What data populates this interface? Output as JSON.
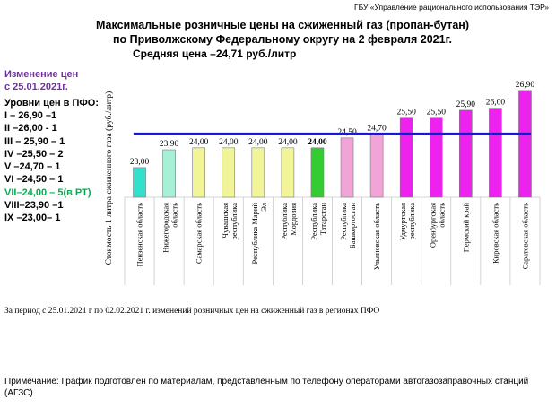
{
  "org_label": "ГБУ «Управление рационального использования ТЭР»",
  "title_line1": "Максимальные розничные цены на сжиженный газ (пропан-бутан)",
  "title_line2": "по Приволжскому Федеральному округу на 2 февраля 2021г.",
  "average_label": "Средняя цена –24,71 руб./литр",
  "change_label_line1": "Изменение цен",
  "change_label_line2": "с 25.01.2021г.",
  "levels_header": "Уровни цен в ПФО:",
  "levels": [
    {
      "text": "I – 26,90 –1",
      "color": "#000000"
    },
    {
      "text": "II –26,00 - 1",
      "color": "#000000"
    },
    {
      "text": "III – 25,90 – 1",
      "color": "#000000"
    },
    {
      "text": "IV –25,50 – 2",
      "color": "#000000"
    },
    {
      "text": "V –24,70 – 1",
      "color": "#000000"
    },
    {
      "text": "VI –24,50 – 1",
      "color": "#000000"
    },
    {
      "text": "VII–24,00 – 5(в РТ)",
      "color": "#00b050"
    },
    {
      "text": "VIII–23,90 –1",
      "color": "#000000"
    },
    {
      "text": "IX –23,00– 1",
      "color": "#000000"
    }
  ],
  "period_note": "За период  с 25.01.2021 г по 02.02.2021 г.  изменений розничных  цен на  сжиженный газ в  регионах ПФО",
  "footer_note": "Примечание: График подготовлен по материалам, представленным по телефону операторами автогазозаправочных станций (АГЗС)",
  "chart_data": {
    "type": "bar",
    "title": "Максимальные розничные цены на сжиженный газ (пропан-бутан) по Приволжскому Федеральному округу на 2 февраля 2021г.",
    "ylabel": "Стоимость 1 литра сжиженного газа  (руб./литр)",
    "xlabel": "",
    "ylim": [
      21.5,
      27.3
    ],
    "average": 24.71,
    "categories": [
      "Пензенская область",
      "Нижегородская область",
      "Самарская область",
      "Чувашская республика",
      "Республика Марий Эл",
      "Республика Мордовия",
      "Республика Татарстан",
      "Республика Башкортостан",
      "Ульяновская область",
      "Удмуртская республика",
      "Оренбургская область",
      "Пермский край",
      "Кировская область",
      "Саратовская область"
    ],
    "tick_lines": [
      [
        "Пензенская область"
      ],
      [
        "Нижегородская",
        "область"
      ],
      [
        "Самарская область"
      ],
      [
        "Чувашская",
        "республика"
      ],
      [
        "Республика Марий",
        "Эл"
      ],
      [
        "Республика",
        "Мордовия"
      ],
      [
        "Республика",
        "Татарстан"
      ],
      [
        "Республика",
        "Башкортостан"
      ],
      [
        "Ульяновская область"
      ],
      [
        "Удмуртская",
        "республика"
      ],
      [
        "Оренбургская",
        "область"
      ],
      [
        "Пермский край"
      ],
      [
        "Кировская область"
      ],
      [
        "Саратовская область"
      ]
    ],
    "values": [
      23.0,
      23.9,
      24.0,
      24.0,
      24.0,
      24.0,
      24.0,
      24.5,
      24.7,
      25.5,
      25.5,
      25.9,
      26.0,
      26.9
    ],
    "value_labels": [
      "23,00",
      "23,90",
      "24,00",
      "24,00",
      "24,00",
      "24,00",
      "24,00",
      "24,50",
      "24,70",
      "25,50",
      "25,50",
      "25,90",
      "26,00",
      "26,90"
    ],
    "bar_colors": [
      "#33e0cc",
      "#a7f0d6",
      "#f1f597",
      "#f1f597",
      "#f1f597",
      "#f1f597",
      "#33cc33",
      "#f0a5d6",
      "#f0a5d6",
      "#ee22ee",
      "#ee22ee",
      "#ee22ee",
      "#ee22ee",
      "#ee22ee"
    ],
    "average_line_color": "#1a1acc",
    "bold_label_index": 6
  }
}
